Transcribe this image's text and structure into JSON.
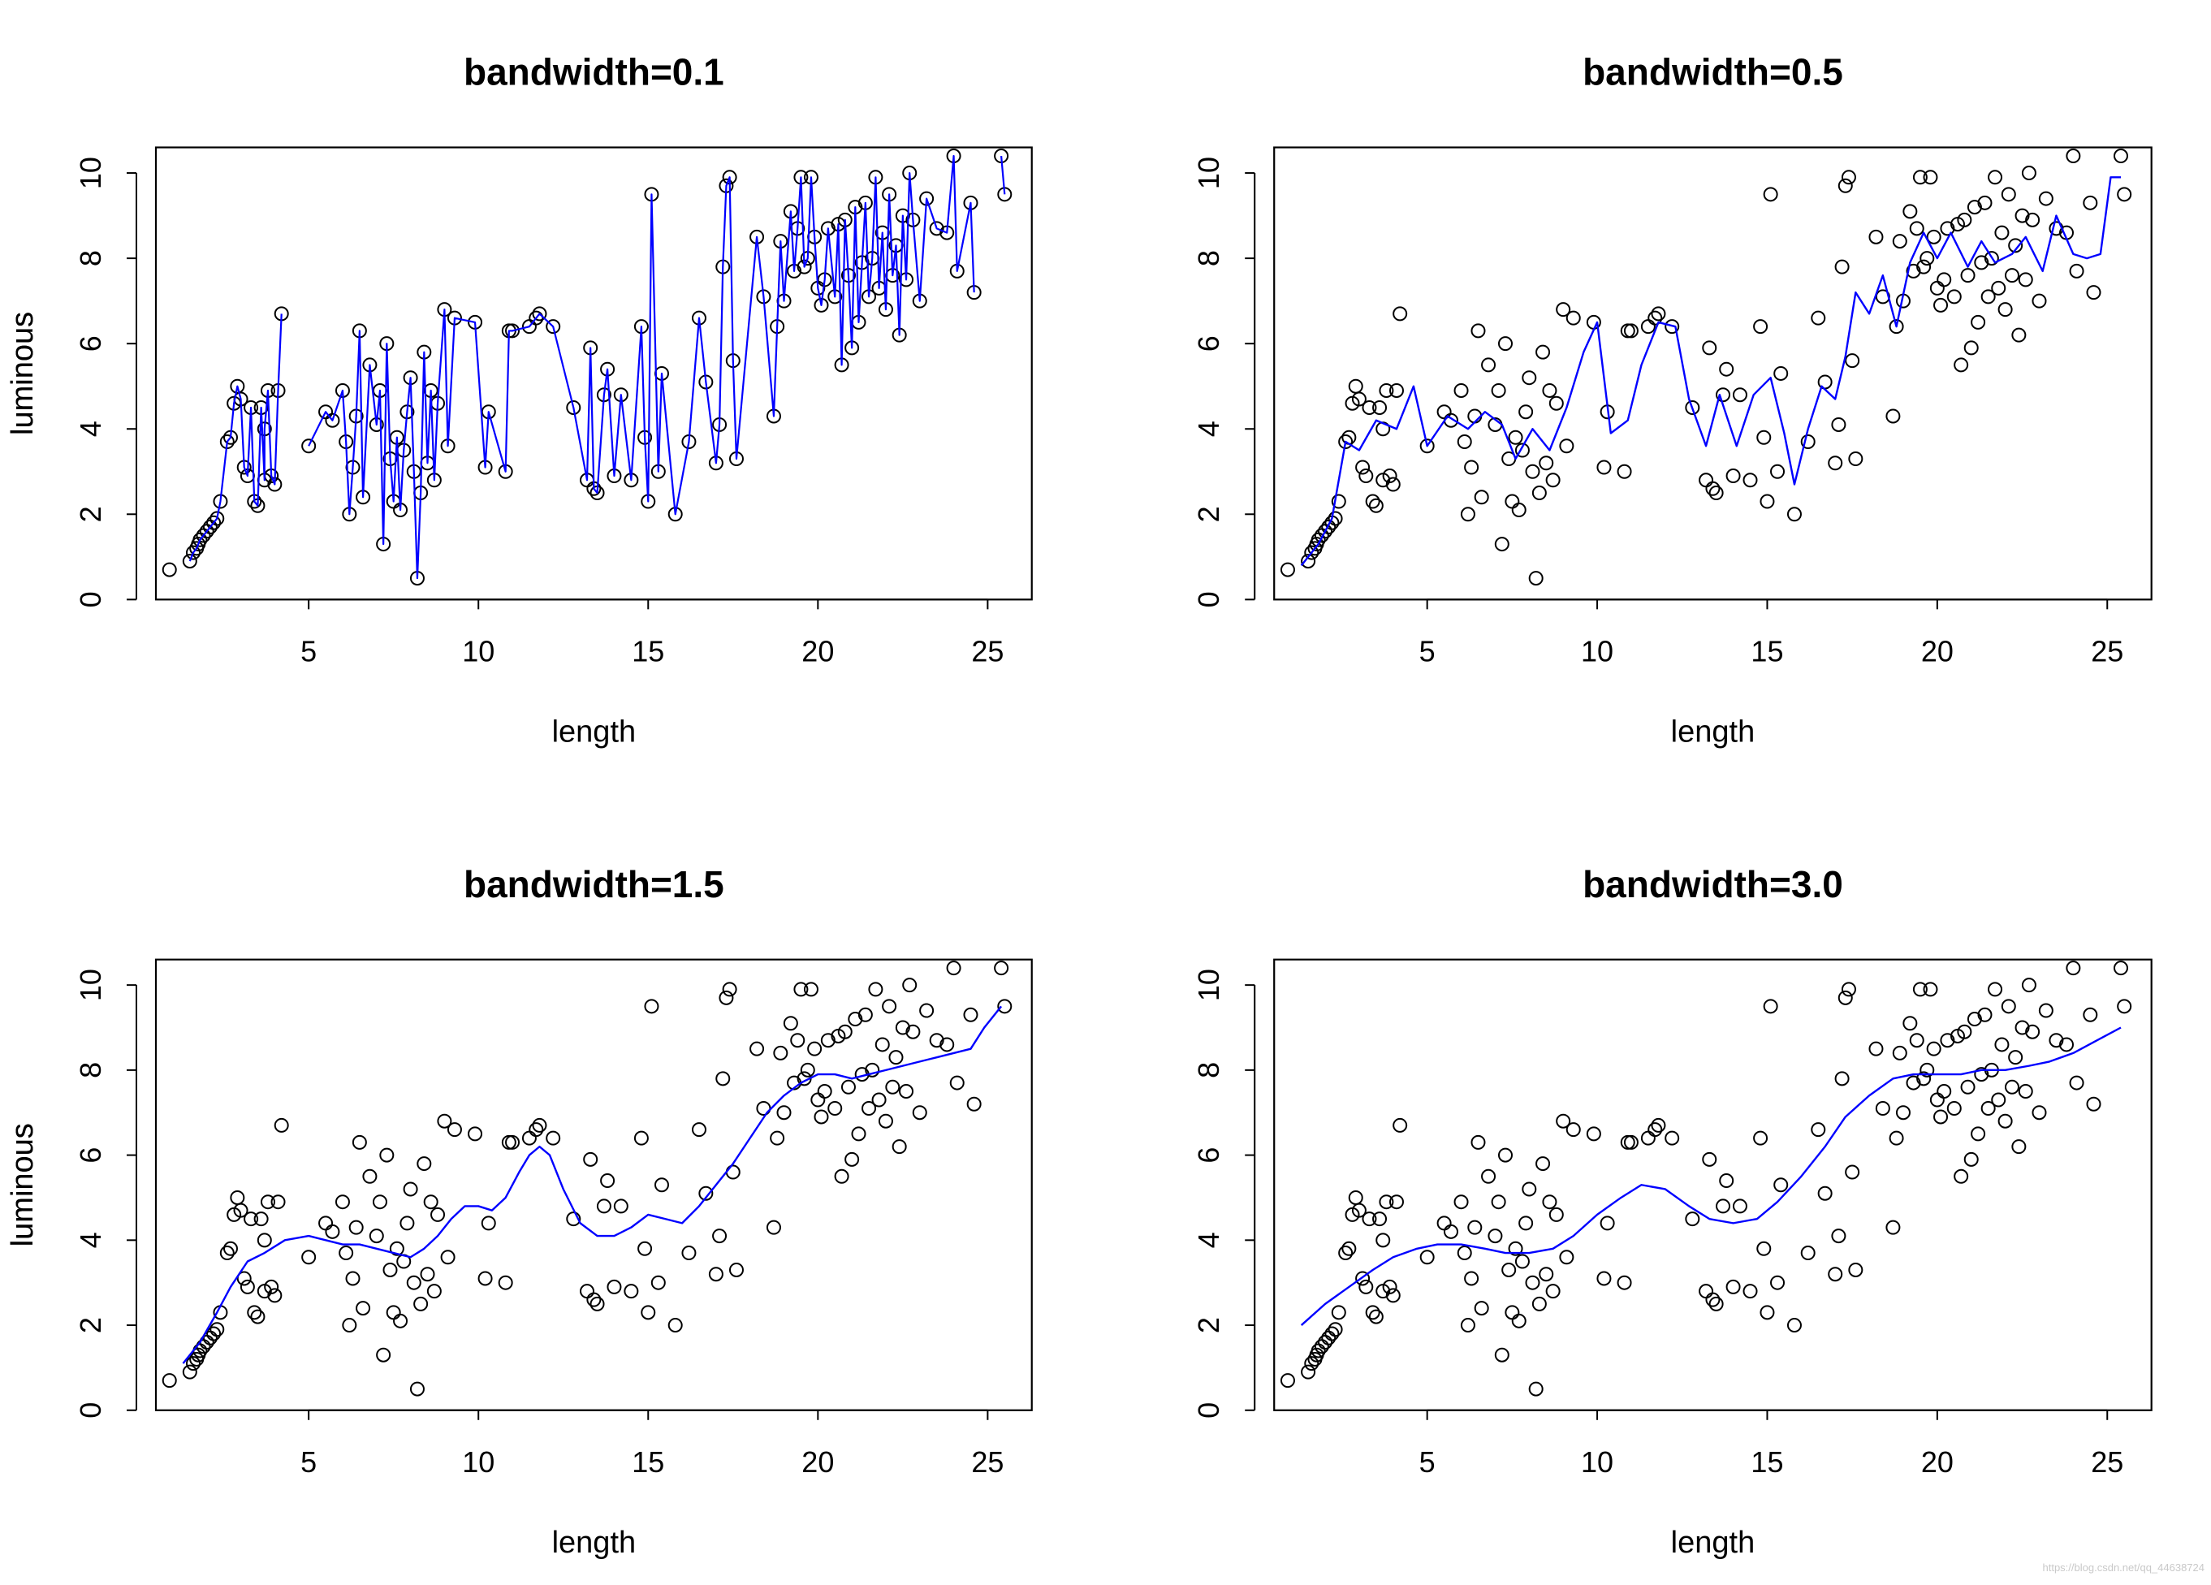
{
  "chart_data": [
    {
      "type": "scatter",
      "title": "bandwidth=0.1",
      "xlabel": "length",
      "ylabel": "luminous",
      "xlim": [
        0.5,
        26.3
      ],
      "ylim": [
        0,
        10.6
      ],
      "xticks": [
        5,
        10,
        15,
        20,
        25
      ],
      "yticks": [
        0,
        2,
        4,
        6,
        8,
        10
      ],
      "xtick_labels": [
        "5",
        "10",
        "15",
        "20",
        "25"
      ],
      "ytick_labels": [
        "0",
        "2",
        "4",
        "6",
        "8",
        "10"
      ],
      "grid": false,
      "series": [
        {
          "kind": "line",
          "color": "#0000ff",
          "x": [
            2.6,
            2.9,
            3.1,
            3.4,
            3.7,
            4.0,
            4.2
          ],
          "y": [
            3.7,
            4.7,
            3.1,
            4.3,
            2.9,
            3.6,
            6.7
          ]
        }
      ]
    },
    {
      "type": "scatter",
      "title": "bandwidth=0.5",
      "xlabel": "length",
      "ylabel": "luminous",
      "xlim": [
        0.5,
        26.3
      ],
      "ylim": [
        0,
        10.6
      ],
      "xticks": [
        5,
        10,
        15,
        20,
        25
      ],
      "yticks": [
        0,
        2,
        4,
        6,
        8,
        10
      ],
      "xtick_labels": [
        "5",
        "10",
        "15",
        "20",
        "25"
      ],
      "ytick_labels": [
        "0",
        "2",
        "4",
        "6",
        "8",
        "10"
      ],
      "grid": false,
      "series": [
        {
          "kind": "line",
          "color": "#0000ff",
          "x": [
            1.3,
            1.8,
            2.2,
            2.6,
            3.0,
            3.5,
            4.1,
            4.6,
            5.0,
            5.6,
            6.2,
            6.7,
            7.2,
            7.6,
            8.1,
            8.6,
            9.1,
            9.6,
            10.0,
            10.4,
            10.9,
            11.3,
            11.8,
            12.3,
            12.7,
            13.2,
            13.6,
            14.1,
            14.6,
            15.1,
            15.5,
            15.8,
            16.2,
            16.6,
            17.0,
            17.3,
            17.6,
            18.0,
            18.4,
            18.8,
            19.2,
            19.6,
            20.0,
            20.4,
            20.9,
            21.3,
            21.7,
            22.2,
            22.6,
            23.1,
            23.5,
            24.0,
            24.4,
            24.8,
            25.1,
            25.4
          ],
          "y": [
            0.8,
            1.3,
            1.9,
            3.7,
            3.5,
            4.2,
            4.0,
            5.0,
            3.6,
            4.3,
            4.0,
            4.4,
            4.1,
            3.3,
            4.0,
            3.5,
            4.5,
            5.8,
            6.5,
            3.9,
            4.2,
            5.5,
            6.5,
            6.4,
            4.7,
            3.6,
            4.8,
            3.6,
            4.8,
            5.2,
            3.9,
            2.7,
            4.0,
            5.0,
            4.7,
            5.7,
            7.2,
            6.7,
            7.6,
            6.4,
            7.9,
            8.6,
            8.0,
            8.6,
            7.8,
            8.4,
            7.9,
            8.1,
            8.5,
            7.7,
            9.0,
            8.1,
            8.0,
            8.1,
            9.9,
            9.9
          ]
        }
      ]
    },
    {
      "type": "scatter",
      "title": "bandwidth=1.5",
      "xlabel": "length",
      "ylabel": "luminous",
      "xlim": [
        0.5,
        26.3
      ],
      "ylim": [
        0,
        10.6
      ],
      "xticks": [
        5,
        10,
        15,
        20,
        25
      ],
      "yticks": [
        0,
        2,
        4,
        6,
        8,
        10
      ],
      "xtick_labels": [
        "5",
        "10",
        "15",
        "20",
        "25"
      ],
      "ytick_labels": [
        "0",
        "2",
        "4",
        "6",
        "8",
        "10"
      ],
      "grid": false,
      "series": [
        {
          "kind": "line",
          "color": "#0000ff",
          "x": [
            1.3,
            1.8,
            2.3,
            2.7,
            3.2,
            3.7,
            4.3,
            5.0,
            5.5,
            6.0,
            6.5,
            7.0,
            7.5,
            8.0,
            8.4,
            8.8,
            9.2,
            9.6,
            10.0,
            10.4,
            10.8,
            11.2,
            11.5,
            11.8,
            12.1,
            12.5,
            13.0,
            13.5,
            14.0,
            14.5,
            15.0,
            15.5,
            16.0,
            16.5,
            17.0,
            17.5,
            18.0,
            18.5,
            19.0,
            19.5,
            20.0,
            20.5,
            21.0,
            21.5,
            22.0,
            22.5,
            23.0,
            23.5,
            24.0,
            24.5,
            24.9,
            25.4
          ],
          "y": [
            1.1,
            1.6,
            2.3,
            2.9,
            3.5,
            3.7,
            4.0,
            4.1,
            4.0,
            3.9,
            3.9,
            3.8,
            3.7,
            3.6,
            3.8,
            4.1,
            4.5,
            4.8,
            4.8,
            4.7,
            5.0,
            5.6,
            6.0,
            6.2,
            6.0,
            5.2,
            4.4,
            4.1,
            4.1,
            4.3,
            4.6,
            4.5,
            4.4,
            4.8,
            5.3,
            5.8,
            6.4,
            7.0,
            7.4,
            7.7,
            7.9,
            7.9,
            7.8,
            7.9,
            8.0,
            8.1,
            8.2,
            8.3,
            8.4,
            8.5,
            9.0,
            9.5
          ]
        }
      ]
    },
    {
      "type": "scatter",
      "title": "bandwidth=3.0",
      "xlabel": "length",
      "ylabel": "luminous",
      "xlim": [
        0.5,
        26.3
      ],
      "ylim": [
        0,
        10.6
      ],
      "xticks": [
        5,
        10,
        15,
        20,
        25
      ],
      "yticks": [
        0,
        2,
        4,
        6,
        8,
        10
      ],
      "xtick_labels": [
        "5",
        "10",
        "15",
        "20",
        "25"
      ],
      "ytick_labels": [
        "0",
        "2",
        "4",
        "6",
        "8",
        "10"
      ],
      "grid": false,
      "series": [
        {
          "kind": "line",
          "color": "#0000ff",
          "x": [
            1.3,
            2.0,
            2.7,
            3.4,
            4.0,
            4.7,
            5.3,
            6.0,
            6.7,
            7.3,
            8.0,
            8.7,
            9.3,
            10.0,
            10.7,
            11.3,
            12.0,
            12.7,
            13.3,
            14.0,
            14.7,
            15.3,
            16.0,
            16.7,
            17.3,
            18.0,
            18.7,
            19.3,
            20.0,
            20.7,
            21.3,
            22.0,
            22.7,
            23.3,
            24.0,
            24.7,
            25.4
          ],
          "y": [
            2.0,
            2.5,
            2.9,
            3.3,
            3.6,
            3.8,
            3.9,
            3.9,
            3.8,
            3.7,
            3.7,
            3.8,
            4.1,
            4.6,
            5.0,
            5.3,
            5.2,
            4.8,
            4.5,
            4.4,
            4.5,
            4.9,
            5.5,
            6.2,
            6.9,
            7.4,
            7.8,
            7.9,
            7.9,
            7.9,
            8.0,
            8.0,
            8.1,
            8.2,
            8.4,
            8.7,
            9.0
          ]
        }
      ]
    }
  ]
}
